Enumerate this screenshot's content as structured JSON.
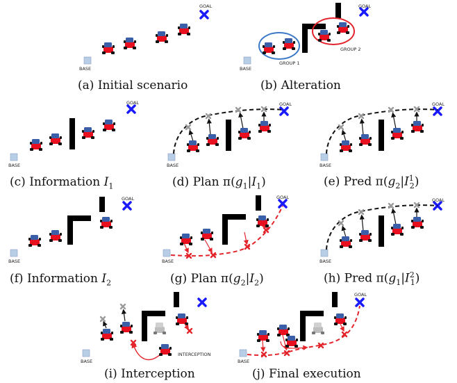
{
  "panels": [
    {
      "id": "a",
      "caption_prefix": "(a)",
      "caption": "Initial scenario"
    },
    {
      "id": "b",
      "caption_prefix": "(b)",
      "caption": "Alteration",
      "labels": {
        "group1": "GROUP 1",
        "group2": "GROUP 2"
      }
    },
    {
      "id": "c",
      "caption_prefix": "(c)",
      "caption_text": "Information",
      "var": "I",
      "sub": "1"
    },
    {
      "id": "d",
      "caption_prefix": "(d)",
      "caption_text": "Plan π(",
      "g": "g",
      "gsub": "1",
      "bar": "|",
      "var": "I",
      "sub": "1",
      "close": ")"
    },
    {
      "id": "e",
      "caption_prefix": "(e)",
      "caption_text": "Pred π(",
      "g": "g",
      "gsub": "2",
      "bar": "|",
      "var": "I",
      "sub": "2",
      "sup": "1",
      "close": ")"
    },
    {
      "id": "f",
      "caption_prefix": "(f)",
      "caption_text": "Information",
      "var": "I",
      "sub": "2"
    },
    {
      "id": "g",
      "caption_prefix": "(g)",
      "caption_text": "Plan π(",
      "g": "g",
      "gsub": "2",
      "bar": "|",
      "var": "I",
      "sub": "2",
      "close": ")"
    },
    {
      "id": "h",
      "caption_prefix": "(h)",
      "caption_text": "Pred π(",
      "g": "g",
      "gsub": "1",
      "bar": "|",
      "var": "I",
      "sub": "1",
      "sup": "2",
      "close": ")"
    },
    {
      "id": "i",
      "caption_prefix": "(i)",
      "caption": "Interception",
      "labels": {
        "interception": "INTERCEPTION"
      }
    },
    {
      "id": "j",
      "caption_prefix": "(j)",
      "caption": "Final execution"
    }
  ],
  "common_labels": {
    "goal": "GOAL",
    "base": "BASE"
  },
  "colors": {
    "goal_cross": "#1a1aff",
    "base_square": "#b8cde6",
    "robot_body": "#e8101e",
    "robot_top": "#3a5fa8",
    "wall": "#000000",
    "plan_red": "#e3242b",
    "pred_gray": "#9a9a9a",
    "group1": "#3a78c8",
    "group2": "#e3242b"
  }
}
